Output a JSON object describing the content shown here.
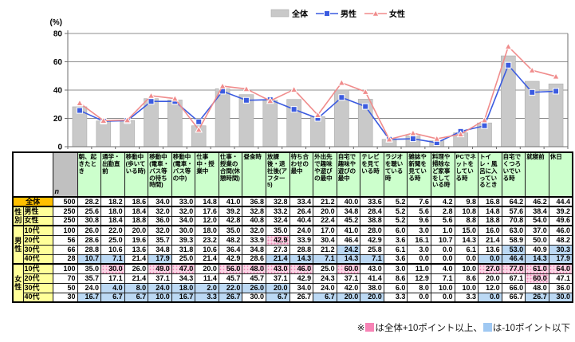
{
  "chart": {
    "unit_label": "(%)",
    "ymax": 80,
    "ytick_step": 20,
    "bar_color": "#C9C9C9",
    "bar_edge_color": "#ADADAD",
    "male_color": "#3B5BE0",
    "female_color": "#F08C8C",
    "grid_color": "#8C8C8C",
    "axis_color": "#6E6E6E"
  },
  "chart_data": {
    "type": "bar+line",
    "title": "",
    "ylabel": "(%)",
    "ylim": [
      0,
      80
    ],
    "grid": true,
    "legend_position": "top",
    "categories": [
      "朝、起きたとき",
      "通学・出勤直前",
      "移動中(歩いている時)",
      "移動中(電車・バス等の待ち時間)",
      "移動中(電車・バス等の中)",
      "仕事中・授業中",
      "仕事・授業の合間(休憩時間)",
      "昼食時",
      "放課後・退社後(アフター5)",
      "待ち合わせの最中",
      "外出先で趣味や遊びの最中",
      "自宅で趣味や遊びの最中",
      "テレビを見ている時",
      "ラジオを聴いている時",
      "雑誌や新聞を見ている時",
      "料理や掃除など家事をしている時",
      "PCでネットをしている時",
      "トイレ・風呂に入っているとき",
      "自宅でくつろいでいる時",
      "就寝前",
      "休日"
    ],
    "series": [
      {
        "name": "全体",
        "type": "bar",
        "marker": "none",
        "values": [
          28.2,
          18.2,
          18.6,
          34.0,
          33.0,
          14.8,
          41.0,
          36.8,
          32.8,
          33.4,
          21.2,
          40.0,
          33.6,
          5.2,
          7.6,
          4.2,
          9.8,
          16.8,
          64.2,
          46.2,
          44.4
        ]
      },
      {
        "name": "男性",
        "type": "line",
        "marker": "square",
        "values": [
          25.6,
          18.0,
          18.4,
          32.0,
          32.0,
          17.6,
          39.2,
          32.8,
          33.2,
          26.4,
          20.0,
          34.8,
          28.4,
          5.2,
          5.6,
          2.8,
          10.8,
          14.8,
          57.6,
          38.4,
          39.2
        ]
      },
      {
        "name": "女性",
        "type": "line",
        "marker": "triangle",
        "values": [
          30.8,
          18.4,
          18.8,
          36.0,
          34.0,
          12.0,
          42.8,
          40.8,
          32.4,
          40.4,
          22.4,
          45.2,
          38.8,
          5.2,
          9.6,
          5.6,
          8.8,
          18.8,
          70.8,
          54.0,
          49.6
        ]
      }
    ]
  },
  "table": {
    "n_header": "n",
    "columns": [
      "朝、起きたとき",
      "通学・出勤直前",
      "移動中(歩いている時)",
      "移動中(電車・バス等の待ち時間)",
      "移動中(電車・バス等の中)",
      "仕事中・授業中",
      "仕事・授業の合間(休憩時間)",
      "昼食時",
      "放課後・退社後(アフター5)",
      "待ち合わせの最中",
      "外出先で趣味や遊びの最中",
      "自宅で趣味や遊びの最中",
      "テレビを見ている時",
      "ラジオを聴いている時",
      "雑誌や新聞を見ている時",
      "料理や掃除など家事をしている時",
      "PCでネットをしている時",
      "トイレ・風呂に入っているとき",
      "自宅でくつろいでいる時",
      "就寝前",
      "休日"
    ],
    "overall_row": {
      "label": "全体",
      "n": 500,
      "values": [
        28.2,
        18.2,
        18.6,
        34.0,
        33.0,
        14.8,
        41.0,
        36.8,
        32.8,
        33.4,
        21.2,
        40.0,
        33.6,
        5.2,
        7.6,
        4.2,
        9.8,
        16.8,
        64.2,
        46.2,
        44.4
      ]
    },
    "groups": [
      {
        "name": "性別",
        "rows": [
          {
            "label": "男性",
            "n": 250,
            "values": [
              25.6,
              18.0,
              18.4,
              32.0,
              32.0,
              17.6,
              39.2,
              32.8,
              33.2,
              26.4,
              20.0,
              34.8,
              28.4,
              5.2,
              5.6,
              2.8,
              10.8,
              14.8,
              57.6,
              38.4,
              39.2
            ]
          },
          {
            "label": "女性",
            "n": 250,
            "values": [
              30.8,
              18.4,
              18.8,
              36.0,
              34.0,
              12.0,
              42.8,
              40.8,
              32.4,
              40.4,
              22.4,
              45.2,
              38.8,
              5.2,
              9.6,
              5.6,
              8.8,
              18.8,
              70.8,
              54.0,
              49.6
            ]
          }
        ]
      },
      {
        "name": "男性",
        "rows": [
          {
            "label": "10代",
            "n": 100,
            "values": [
              26.0,
              22.0,
              20.0,
              32.0,
              30.0,
              18.0,
              35.0,
              32.0,
              35.0,
              24.0,
              17.0,
              41.0,
              28.0,
              6.0,
              3.0,
              1.0,
              15.0,
              16.0,
              63.0,
              37.0,
              46.0
            ]
          },
          {
            "label": "20代",
            "n": 56,
            "values": [
              28.6,
              25.0,
              19.6,
              35.7,
              39.3,
              23.2,
              48.2,
              33.9,
              42.9,
              33.9,
              30.4,
              46.4,
              42.9,
              3.6,
              16.1,
              10.7,
              14.3,
              21.4,
              58.9,
              50.0,
              48.2
            ]
          },
          {
            "label": "30代",
            "n": 66,
            "values": [
              28.8,
              10.6,
              13.6,
              34.8,
              31.8,
              10.6,
              36.4,
              34.8,
              27.3,
              28.8,
              21.2,
              24.2,
              25.8,
              6.1,
              3.0,
              0.0,
              6.1,
              13.6,
              53.0,
              40.9,
              30.3
            ]
          },
          {
            "label": "40代",
            "n": 28,
            "values": [
              10.7,
              7.1,
              21.4,
              17.9,
              25.0,
              21.4,
              42.9,
              28.6,
              21.4,
              14.3,
              7.1,
              14.3,
              7.1,
              3.6,
              0.0,
              0.0,
              0.0,
              0.0,
              46.4,
              14.3,
              17.9
            ]
          }
        ]
      },
      {
        "name": "女性",
        "rows": [
          {
            "label": "10代",
            "n": 100,
            "values": [
              35.0,
              30.0,
              26.0,
              49.0,
              47.0,
              20.0,
              56.0,
              48.0,
              43.0,
              46.0,
              25.0,
              60.0,
              43.0,
              3.0,
              11.0,
              4.0,
              10.0,
              27.0,
              77.0,
              61.0,
              64.0
            ]
          },
          {
            "label": "20代",
            "n": 70,
            "values": [
              35.7,
              17.1,
              21.4,
              37.1,
              34.3,
              11.4,
              45.7,
              45.7,
              37.1,
              42.9,
              24.3,
              37.1,
              41.4,
              8.6,
              12.9,
              7.1,
              8.6,
              20.0,
              67.1,
              60.0,
              47.1
            ]
          },
          {
            "label": "30代",
            "n": 50,
            "values": [
              24.0,
              4.0,
              8.0,
              24.0,
              18.0,
              2.0,
              22.0,
              26.0,
              20.0,
              34.0,
              24.0,
              42.0,
              38.0,
              6.0,
              8.0,
              10.0,
              10.0,
              12.0,
              66.0,
              48.0,
              36.0
            ]
          },
          {
            "label": "40代",
            "n": 30,
            "values": [
              16.7,
              6.7,
              6.7,
              10.0,
              16.7,
              3.3,
              26.7,
              30.0,
              6.7,
              26.7,
              6.7,
              20.0,
              20.0,
              3.3,
              0.0,
              0.0,
              3.3,
              0.0,
              66.7,
              26.7,
              30.0
            ]
          }
        ]
      }
    ],
    "highlight": {
      "threshold": 10,
      "plus_color": "#F28FBC",
      "minus_color": "#BCD9F4"
    }
  },
  "footnote": {
    "prefix": "※",
    "pink_text": "は全体+10ポイント以上、",
    "blue_text": "は-10ポイント以下",
    "pink_color": "#F783B5",
    "blue_color": "#9FC8F2"
  }
}
